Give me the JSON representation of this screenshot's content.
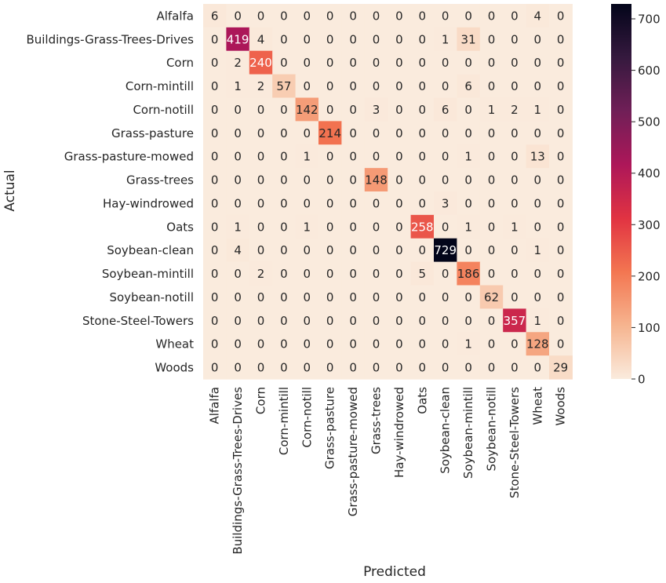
{
  "chart_data": {
    "type": "heatmap",
    "title": "",
    "xlabel": "Predicted",
    "ylabel": "Actual",
    "rows": [
      "Alfalfa",
      "Buildings-Grass-Trees-Drives",
      "Corn",
      "Corn-mintill",
      "Corn-notill",
      "Grass-pasture",
      "Grass-pasture-mowed",
      "Grass-trees",
      "Hay-windrowed",
      "Oats",
      "Soybean-clean",
      "Soybean-mintill",
      "Soybean-notill",
      "Stone-Steel-Towers",
      "Wheat",
      "Woods"
    ],
    "columns": [
      "Alfalfa",
      "Buildings-Grass-Trees-Drives",
      "Corn",
      "Corn-mintill",
      "Corn-notill",
      "Grass-pasture",
      "Grass-pasture-mowed",
      "Grass-trees",
      "Hay-windrowed",
      "Oats",
      "Soybean-clean",
      "Soybean-mintill",
      "Soybean-notill",
      "Stone-Steel-Towers",
      "Wheat",
      "Woods"
    ],
    "values": [
      [
        6,
        0,
        0,
        0,
        0,
        0,
        0,
        0,
        0,
        0,
        0,
        0,
        0,
        0,
        4,
        0
      ],
      [
        0,
        419,
        4,
        0,
        0,
        0,
        0,
        0,
        0,
        0,
        1,
        31,
        0,
        0,
        0,
        0
      ],
      [
        0,
        2,
        240,
        0,
        0,
        0,
        0,
        0,
        0,
        0,
        0,
        0,
        0,
        0,
        0,
        0
      ],
      [
        0,
        1,
        2,
        57,
        0,
        0,
        0,
        0,
        0,
        0,
        0,
        6,
        0,
        0,
        0,
        0
      ],
      [
        0,
        0,
        0,
        0,
        142,
        0,
        0,
        3,
        0,
        0,
        6,
        0,
        1,
        2,
        1,
        0
      ],
      [
        0,
        0,
        0,
        0,
        0,
        214,
        0,
        0,
        0,
        0,
        0,
        0,
        0,
        0,
        0,
        0
      ],
      [
        0,
        0,
        0,
        0,
        1,
        0,
        0,
        0,
        0,
        0,
        0,
        1,
        0,
        0,
        13,
        0
      ],
      [
        0,
        0,
        0,
        0,
        0,
        0,
        0,
        148,
        0,
        0,
        0,
        0,
        0,
        0,
        0,
        0
      ],
      [
        0,
        0,
        0,
        0,
        0,
        0,
        0,
        0,
        0,
        0,
        3,
        0,
        0,
        0,
        0,
        0
      ],
      [
        0,
        1,
        0,
        0,
        1,
        0,
        0,
        0,
        0,
        258,
        0,
        1,
        0,
        1,
        0,
        0
      ],
      [
        0,
        4,
        0,
        0,
        0,
        0,
        0,
        0,
        0,
        0,
        729,
        0,
        0,
        0,
        1,
        0
      ],
      [
        0,
        0,
        2,
        0,
        0,
        0,
        0,
        0,
        0,
        5,
        0,
        186,
        0,
        0,
        0,
        0
      ],
      [
        0,
        0,
        0,
        0,
        0,
        0,
        0,
        0,
        0,
        0,
        0,
        0,
        62,
        0,
        0,
        0
      ],
      [
        0,
        0,
        0,
        0,
        0,
        0,
        0,
        0,
        0,
        0,
        0,
        0,
        0,
        357,
        1,
        0
      ],
      [
        0,
        0,
        0,
        0,
        0,
        0,
        0,
        0,
        0,
        0,
        0,
        1,
        0,
        0,
        128,
        0
      ],
      [
        0,
        0,
        0,
        0,
        0,
        0,
        0,
        0,
        0,
        0,
        0,
        0,
        0,
        0,
        0,
        29
      ]
    ],
    "colorbar": {
      "min": 0,
      "max": 729,
      "ticks": [
        0,
        100,
        200,
        300,
        400,
        500,
        600,
        700
      ]
    },
    "colormap": [
      "#faebdd",
      "#f6b48f",
      "#f37651",
      "#e13342",
      "#ad1759",
      "#701f57",
      "#35193e",
      "#03051a"
    ]
  }
}
